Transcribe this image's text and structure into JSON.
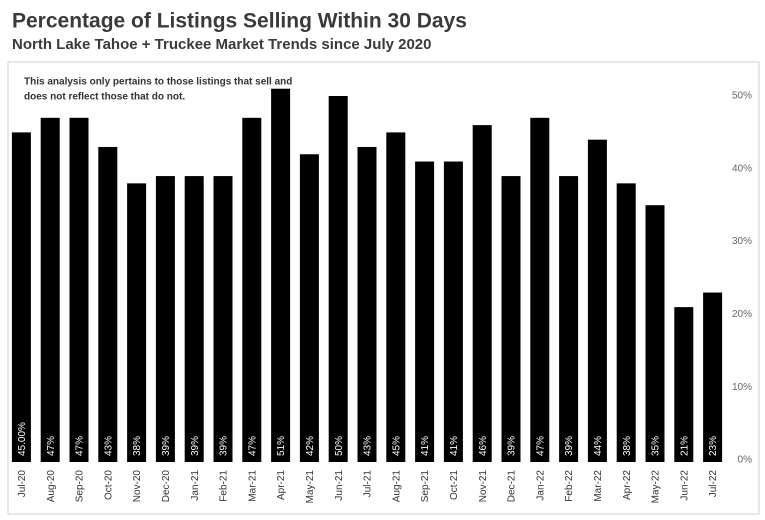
{
  "chart_data": {
    "type": "bar",
    "title": "Percentage of Listings Selling Within 30 Days",
    "subtitle": "North Lake Tahoe + Truckee Market Trends since July 2020",
    "annotation": [
      "This analysis only pertains to those listings that sell and",
      "does not reflect those that do not."
    ],
    "categories": [
      "Jul-20",
      "Aug-20",
      "Sep-20",
      "Oct-20",
      "Nov-20",
      "Dec-20",
      "Jan-21",
      "Feb-21",
      "Mar-21",
      "Apr-21",
      "May-21",
      "Jun-21",
      "Jul-21",
      "Aug-21",
      "Sep-21",
      "Oct-21",
      "Nov-21",
      "Dec-21",
      "Jan-22",
      "Feb-22",
      "Mar-22",
      "Apr-22",
      "May-22",
      "Jun-22",
      "Jul-22"
    ],
    "values": [
      45,
      47,
      47,
      43,
      38,
      39,
      39,
      39,
      47,
      51,
      42,
      50,
      43,
      45,
      41,
      41,
      46,
      39,
      47,
      39,
      44,
      38,
      35,
      21,
      23
    ],
    "value_labels": [
      "45.00%",
      "47%",
      "47%",
      "43%",
      "38%",
      "39%",
      "39%",
      "39%",
      "47%",
      "51%",
      "42%",
      "50%",
      "43%",
      "45%",
      "41%",
      "41%",
      "46%",
      "39%",
      "47%",
      "39%",
      "44%",
      "38%",
      "35%",
      "21%",
      "23%"
    ],
    "color": "#000000",
    "ylim": [
      0,
      50
    ],
    "yticks": [
      {
        "value": 0,
        "label": "0%"
      },
      {
        "value": 10,
        "label": "10%"
      },
      {
        "value": 20,
        "label": "20%"
      },
      {
        "value": 30,
        "label": "30%"
      },
      {
        "value": 40,
        "label": "40%"
      },
      {
        "value": 50,
        "label": "50%"
      }
    ],
    "grid": false,
    "y_axis_side": "right"
  }
}
